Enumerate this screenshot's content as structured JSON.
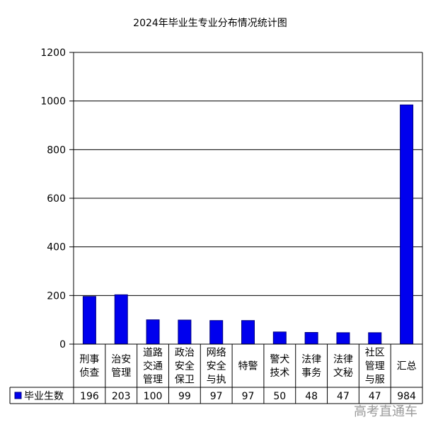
{
  "chart_data": {
    "type": "bar",
    "title": "2024年毕业生专业分布情况统计图",
    "categories": [
      [
        "刑事",
        "侦查"
      ],
      [
        "治安",
        "管理"
      ],
      [
        "道路",
        "交通",
        "管理"
      ],
      [
        "政治",
        "安全",
        "保卫"
      ],
      [
        "网络",
        "安全",
        "与执"
      ],
      [
        "特警"
      ],
      [
        "警犬",
        "技术"
      ],
      [
        "法律",
        "事务"
      ],
      [
        "法律",
        "文秘"
      ],
      [
        "社区",
        "管理",
        "与服"
      ],
      [
        "汇总"
      ]
    ],
    "series": [
      {
        "name": "毕业生数",
        "values": [
          196,
          203,
          100,
          99,
          97,
          97,
          50,
          48,
          47,
          47,
          984
        ]
      }
    ],
    "data_labels": [
      "196",
      "203",
      "100",
      "99",
      "97",
      "97",
      "50",
      "48",
      "47",
      "47",
      "984"
    ],
    "ylim": [
      0,
      1200
    ],
    "yticks": [
      0,
      200,
      400,
      600,
      800,
      1000,
      1200
    ],
    "grid": true,
    "legend": "data-table-left",
    "bar_color": "#0000ee",
    "bar_border_color": "#000080"
  },
  "watermark": "高考直通车"
}
